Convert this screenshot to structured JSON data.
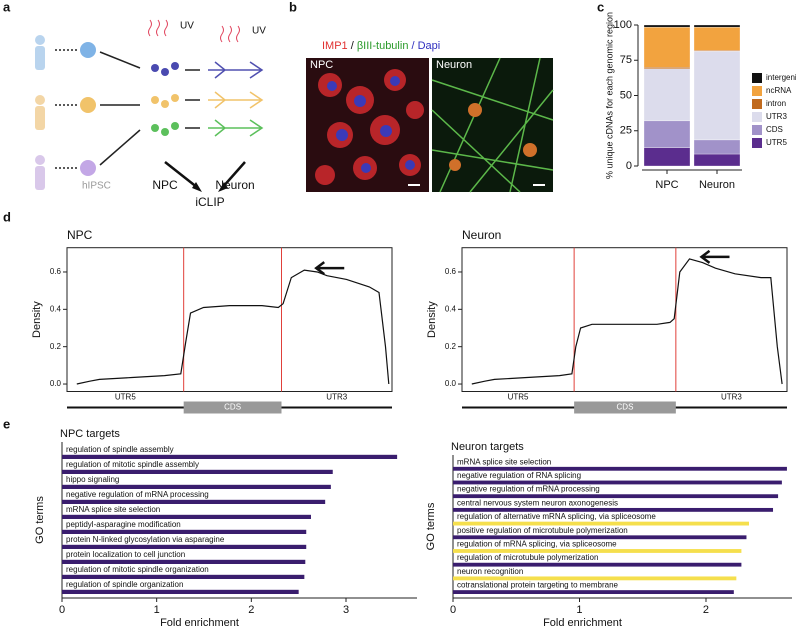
{
  "panels": {
    "letters": [
      "a",
      "b",
      "c",
      "d",
      "e"
    ],
    "schematic": {
      "uv": [
        "UV",
        "UV"
      ],
      "cell_line": "hIPSC",
      "stage1": "NPC",
      "stage2": "Neuron",
      "method": "iCLIP"
    },
    "micrograph": {
      "stain1": "IMP1",
      "sep1": " / ",
      "stain2": "βIII-tubulin",
      "stain3": " / Dapi",
      "left": "NPC",
      "right": "Neuron"
    }
  },
  "chart_data": [
    {
      "type": "stacked_bar",
      "ylabel": "% unique cDNAs for each genomic region",
      "categories": [
        "NPC",
        "Neuron"
      ],
      "series": [
        {
          "name": "UTR5",
          "color": "#5b2d8e",
          "values": [
            13,
            8.5
          ]
        },
        {
          "name": "CDS",
          "color": "#a192c9",
          "values": [
            19,
            10
          ]
        },
        {
          "name": "UTR3",
          "color": "#dcdcec",
          "values": [
            37,
            63
          ]
        },
        {
          "name": "intron",
          "color": "#c06a1e",
          "values": [
            1,
            0.5
          ]
        },
        {
          "name": "ncRNA",
          "color": "#f2a33f",
          "values": [
            28.5,
            16.5
          ]
        },
        {
          "name": "intergenic",
          "color": "#111111",
          "values": [
            1.5,
            1.5
          ]
        }
      ],
      "ylim": [
        0,
        100
      ],
      "yticks": [
        0,
        25,
        50,
        75,
        100
      ]
    },
    {
      "type": "line",
      "title": "NPC",
      "ylabel": "Density",
      "color": "#111111",
      "x": [
        3,
        7,
        10,
        20,
        30,
        35,
        36.5,
        38,
        42,
        50,
        60,
        65,
        66.5,
        69,
        73,
        77,
        80,
        86,
        93,
        96,
        98,
        99
      ],
      "values": [
        0,
        0.015,
        0.025,
        0.035,
        0.045,
        0.055,
        0.22,
        0.38,
        0.41,
        0.42,
        0.42,
        0.41,
        0.43,
        0.57,
        0.61,
        0.6,
        0.58,
        0.56,
        0.52,
        0.49,
        0.2,
        0
      ],
      "xlim": [
        0,
        100
      ],
      "ylim": [
        -0.04,
        0.73
      ],
      "yticks": [
        {
          "value": 0,
          "label": "0.0"
        },
        {
          "value": 0.2,
          "label": "0.2"
        },
        {
          "value": 0.4,
          "label": "0.4"
        },
        {
          "value": 0.6,
          "label": "0.6"
        }
      ],
      "boundaries": [
        35.9,
        66
      ],
      "boundary_color": "#e0403a",
      "regions": [
        "UTR5",
        "CDS",
        "UTR3"
      ]
    },
    {
      "type": "line",
      "title": "Neuron",
      "ylabel": "Density",
      "color": "#111111",
      "x": [
        3,
        7,
        10,
        20,
        30,
        33.8,
        35,
        36.5,
        40,
        50,
        60,
        64,
        65.3,
        67,
        70,
        74,
        78,
        84,
        92,
        95,
        97,
        98.5
      ],
      "values": [
        0,
        0.015,
        0.025,
        0.035,
        0.045,
        0.055,
        0.2,
        0.3,
        0.32,
        0.32,
        0.32,
        0.33,
        0.35,
        0.6,
        0.67,
        0.65,
        0.62,
        0.59,
        0.57,
        0.57,
        0.2,
        0
      ],
      "xlim": [
        0,
        100
      ],
      "ylim": [
        -0.04,
        0.73
      ],
      "yticks": [
        {
          "value": 0,
          "label": "0.0"
        },
        {
          "value": 0.2,
          "label": "0.2"
        },
        {
          "value": 0.4,
          "label": "0.4"
        },
        {
          "value": 0.6,
          "label": "0.6"
        }
      ],
      "boundaries": [
        34.5,
        65.8
      ],
      "boundary_color": "#e0403a",
      "regions": [
        "UTR5",
        "CDS",
        "UTR3"
      ]
    },
    {
      "type": "hbar",
      "title": "NPC targets",
      "ylabel": "GO terms",
      "xlabel": "Fold enrichment",
      "categories": [
        "regulation of spindle assembly",
        "regulation of mitotic spindle assembly",
        "hippo signaling",
        "negative regulation of mRNA processing",
        "mRNA splice site selection",
        "peptidyl-asparagine modification",
        "protein N-linked glycosylation via asparagine",
        "protein localization to cell junction",
        "regulation of mitotic spindle organization",
        "regulation of spindle organization"
      ],
      "values": [
        3.54,
        2.86,
        2.84,
        2.78,
        2.63,
        2.58,
        2.58,
        2.57,
        2.56,
        2.5
      ],
      "colors": [
        "#3a1d6e",
        "#3a1d6e",
        "#3a1d6e",
        "#3a1d6e",
        "#3a1d6e",
        "#3a1d6e",
        "#3a1d6e",
        "#3a1d6e",
        "#3a1d6e",
        "#3a1d6e"
      ],
      "xlim": [
        0,
        3.75
      ],
      "xticks": [
        0,
        1,
        2,
        3
      ]
    },
    {
      "type": "hbar",
      "title": "Neuron targets",
      "ylabel": "GO terms",
      "xlabel": "Fold enrichment",
      "categories": [
        "mRNA splice site selection",
        "negative regulation of RNA splicing",
        "negative regulation of mRNA processing",
        "central nervous system neuron axonogenesis",
        "regulation of alternative mRNA splicing, via spliceosome",
        "positive regulation of microtubule polymerization",
        "regulation of mRNA splicing, via spliceosome",
        "regulation of microtubule polymerization",
        "neuron recognition",
        "cotranslational protein targeting to membrane"
      ],
      "values": [
        2.64,
        2.6,
        2.57,
        2.53,
        2.34,
        2.32,
        2.28,
        2.28,
        2.24,
        2.22
      ],
      "colors": [
        "#3a1d6e",
        "#3a1d6e",
        "#3a1d6e",
        "#3a1d6e",
        "#f5df4d",
        "#3a1d6e",
        "#f5df4d",
        "#3a1d6e",
        "#f5df4d",
        "#3a1d6e"
      ],
      "xlim": [
        0,
        2.68
      ],
      "xticks": [
        0,
        1,
        2
      ]
    }
  ]
}
